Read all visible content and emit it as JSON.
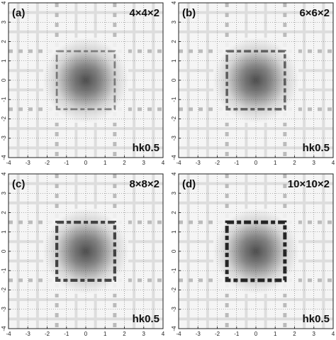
{
  "axis": {
    "ticks": [
      -4,
      -3,
      -2,
      -1,
      0,
      1,
      2,
      3,
      4
    ]
  },
  "panels": [
    {
      "label": "(a)",
      "size": "4×4×2",
      "plane": "hk0.5"
    },
    {
      "label": "(b)",
      "size": "6×6×2",
      "plane": "hk0.5"
    },
    {
      "label": "(c)",
      "size": "8×8×2",
      "plane": "hk0.5"
    },
    {
      "label": "(d)",
      "size": "10×10×2",
      "plane": "hk0.5"
    }
  ]
}
